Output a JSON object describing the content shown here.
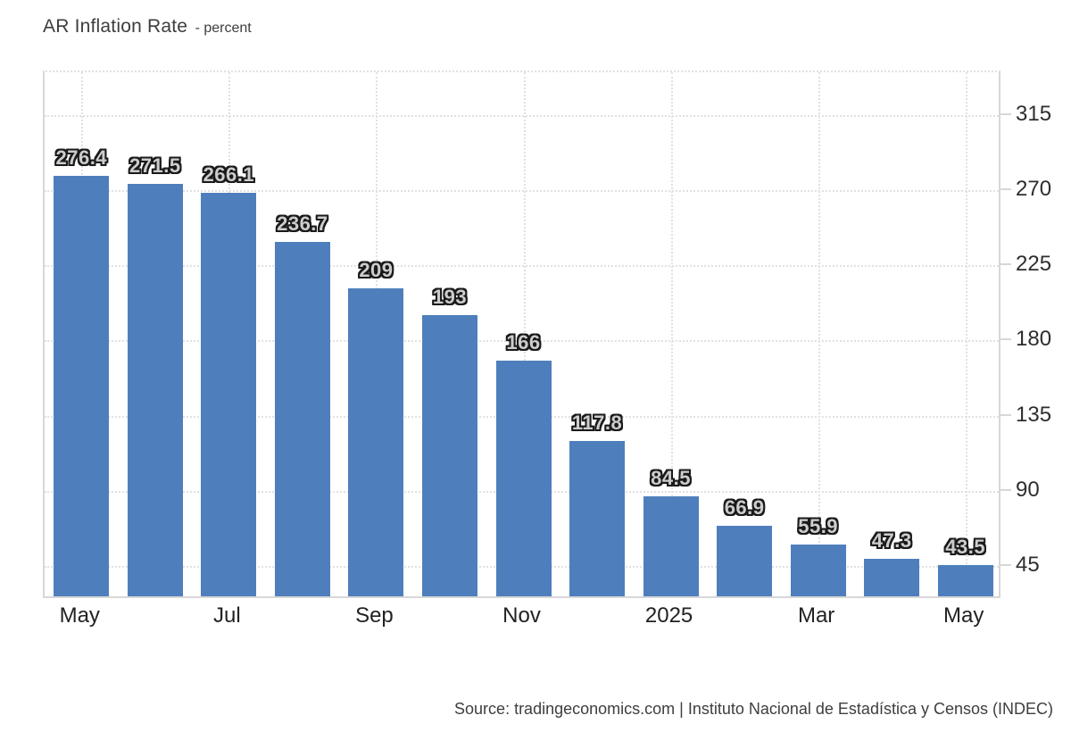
{
  "header": {
    "title": "AR Inflation Rate",
    "subtitle": "- percent"
  },
  "footer": {
    "source": "Source: tradingeconomics.com | Instituto Nacional de Estadística y Censos (INDEC)"
  },
  "colors": {
    "bar": "#4E7FBC",
    "gridline": "#E1E1E1",
    "axis": "#D7D7D7",
    "value_label_fill": "#CDCDCD",
    "value_label_outline": "#1A1A1A"
  },
  "chart_data": {
    "type": "bar",
    "title": "AR Inflation Rate",
    "ylabel": "percent",
    "values": [
      276.4,
      271.5,
      266.1,
      236.7,
      209,
      193,
      166,
      117.8,
      84.5,
      66.9,
      55.9,
      47.3,
      43.5
    ],
    "bar_labels": [
      "276.4",
      "271.5",
      "266.1",
      "236.7",
      "209",
      "193",
      "166",
      "117.8",
      "84.5",
      "66.9",
      "55.9",
      "47.3",
      "43.5"
    ],
    "xticks": [
      {
        "index": 0,
        "label": "May"
      },
      {
        "index": 2,
        "label": "Jul"
      },
      {
        "index": 4,
        "label": "Sep"
      },
      {
        "index": 6,
        "label": "Nov"
      },
      {
        "index": 8,
        "label": "2025"
      },
      {
        "index": 10,
        "label": "Mar"
      },
      {
        "index": 12,
        "label": "May"
      }
    ],
    "yticks": [
      45,
      90,
      135,
      180,
      225,
      270,
      315
    ],
    "ylim": [
      24.7,
      340.6
    ],
    "grid": "dotted",
    "legend": "none",
    "yaxis_side": "right"
  }
}
